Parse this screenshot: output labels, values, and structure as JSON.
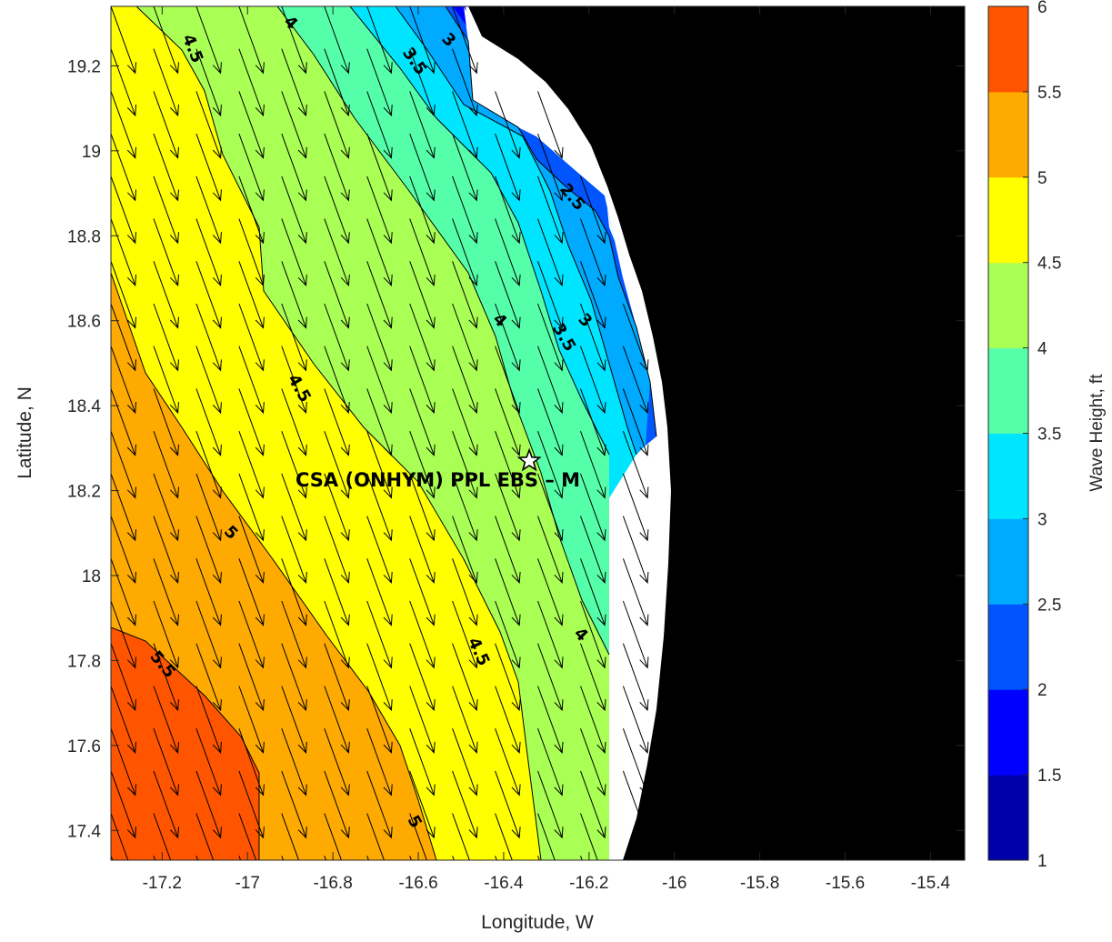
{
  "chart_data": {
    "type": "heatmap",
    "subtype": "filled-contour wave-height map with wave-direction vectors",
    "xlabel": "Longitude, W",
    "ylabel": "Latitude, N",
    "xlim": [
      -17.32,
      -15.32
    ],
    "ylim": [
      17.33,
      19.34
    ],
    "xticks": [
      -17.2,
      -17,
      -16.8,
      -16.6,
      -16.4,
      -16.2,
      -16,
      -15.8,
      -15.6,
      -15.4
    ],
    "xtick_labels": [
      "-17.2",
      "-17",
      "-16.8",
      "-16.6",
      "-16.4",
      "-16.2",
      "-16",
      "-15.8",
      "-15.6",
      "-15.4"
    ],
    "yticks": [
      17.4,
      17.6,
      17.8,
      18,
      18.2,
      18.4,
      18.6,
      18.8,
      19,
      19.2
    ],
    "ytick_labels": [
      "17.4",
      "17.6",
      "17.8",
      "18",
      "18.2",
      "18.4",
      "18.6",
      "18.8",
      "19",
      "19.2"
    ],
    "grid": false,
    "colorbar": {
      "label": "Wave Height, ft",
      "range": [
        1,
        6
      ],
      "tick_values": [
        1,
        1.5,
        2,
        2.5,
        3,
        3.5,
        4,
        4.5,
        5,
        5.5,
        6
      ],
      "tick_labels": [
        "1",
        "1.5",
        "2",
        "2.5",
        "3",
        "3.5",
        "4",
        "4.5",
        "5",
        "5.5",
        "6"
      ],
      "colors": [
        "#0000aa",
        "#0000ff",
        "#0055ff",
        "#00aaff",
        "#00e5ff",
        "#55ffaa",
        "#aaff55",
        "#ffff00",
        "#ffaa00",
        "#ff5500"
      ]
    },
    "land_color": "#000000",
    "nodata_color": "#ffffff",
    "contour_levels": [
      2.5,
      3,
      3.5,
      4,
      4.5,
      5,
      5.5
    ],
    "contour_labels": [
      {
        "text": "4.5",
        "lon": -17.13,
        "lat": 19.24,
        "angle": 68
      },
      {
        "text": "4",
        "lon": -16.9,
        "lat": 19.3,
        "angle": 45
      },
      {
        "text": "3.5",
        "lon": -16.61,
        "lat": 19.21,
        "angle": 55
      },
      {
        "text": "3",
        "lon": -16.53,
        "lat": 19.26,
        "angle": 45
      },
      {
        "text": "2.5",
        "lon": -16.24,
        "lat": 18.89,
        "angle": 50
      },
      {
        "text": "4",
        "lon": -16.41,
        "lat": 18.6,
        "angle": 45
      },
      {
        "text": "3",
        "lon": -16.21,
        "lat": 18.6,
        "angle": 45
      },
      {
        "text": "3.5",
        "lon": -16.26,
        "lat": 18.56,
        "angle": 60
      },
      {
        "text": "4.5",
        "lon": -16.88,
        "lat": 18.44,
        "angle": 60
      },
      {
        "text": "5",
        "lon": -17.04,
        "lat": 18.1,
        "angle": 45
      },
      {
        "text": "5.5",
        "lon": -17.2,
        "lat": 17.79,
        "angle": 50
      },
      {
        "text": "4.5",
        "lon": -16.46,
        "lat": 17.82,
        "angle": 65
      },
      {
        "text": "4",
        "lon": -16.22,
        "lat": 17.86,
        "angle": 45
      },
      {
        "text": "5",
        "lon": -16.61,
        "lat": 17.42,
        "angle": 60
      }
    ],
    "site": {
      "label": "CSA (ONHYM) PPL EBS – M",
      "lon": -16.34,
      "lat": 18.27,
      "marker": "star"
    },
    "vectors": {
      "direction_deg_from_north": 160,
      "spacing_deg": 0.1,
      "description": "wave direction arrows toward SSE"
    }
  }
}
